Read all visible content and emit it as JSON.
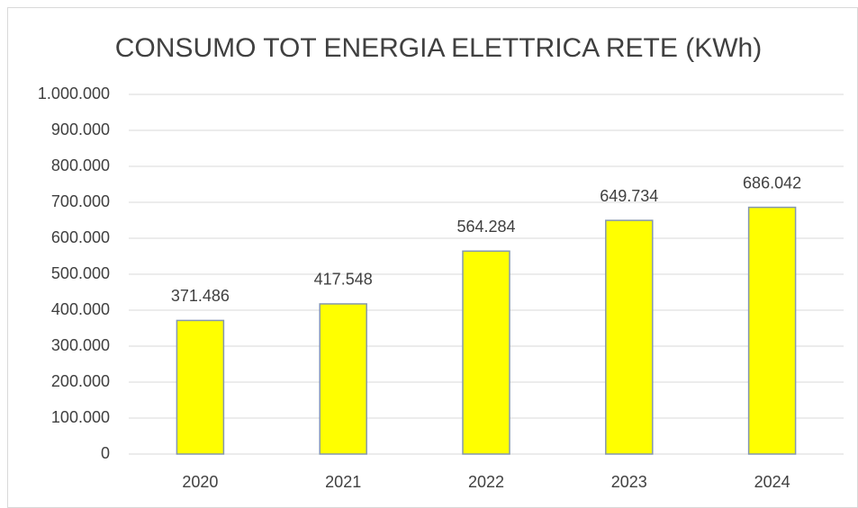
{
  "chart_data": {
    "type": "bar",
    "title": "CONSUMO TOT ENERGIA ELETTRICA RETE (KWh)",
    "categories": [
      "2020",
      "2021",
      "2022",
      "2023",
      "2024"
    ],
    "values": [
      371486,
      417548,
      564284,
      649734,
      686042
    ],
    "value_labels": [
      "371.486",
      "417.548",
      "564.284",
      "649.734",
      "686.042"
    ],
    "color": "#ffff00",
    "ylim": [
      0,
      1000000
    ],
    "yticks": [
      0,
      {
        "value": 100000,
        "label": "100.000"
      },
      {
        "value": 200000,
        "label": "200.000"
      },
      {
        "value": 300000,
        "label": "300.000"
      },
      {
        "value": 400000,
        "label": "400.000"
      },
      {
        "value": 500000,
        "label": "500.000"
      },
      {
        "value": 600000,
        "label": "600.000"
      },
      {
        "value": 700000,
        "label": "700.000"
      },
      {
        "value": 800000,
        "label": "800.000"
      },
      {
        "value": 900000,
        "label": "900.000"
      },
      {
        "value": 1000000,
        "label": "1.000.000"
      }
    ],
    "grid": true
  }
}
